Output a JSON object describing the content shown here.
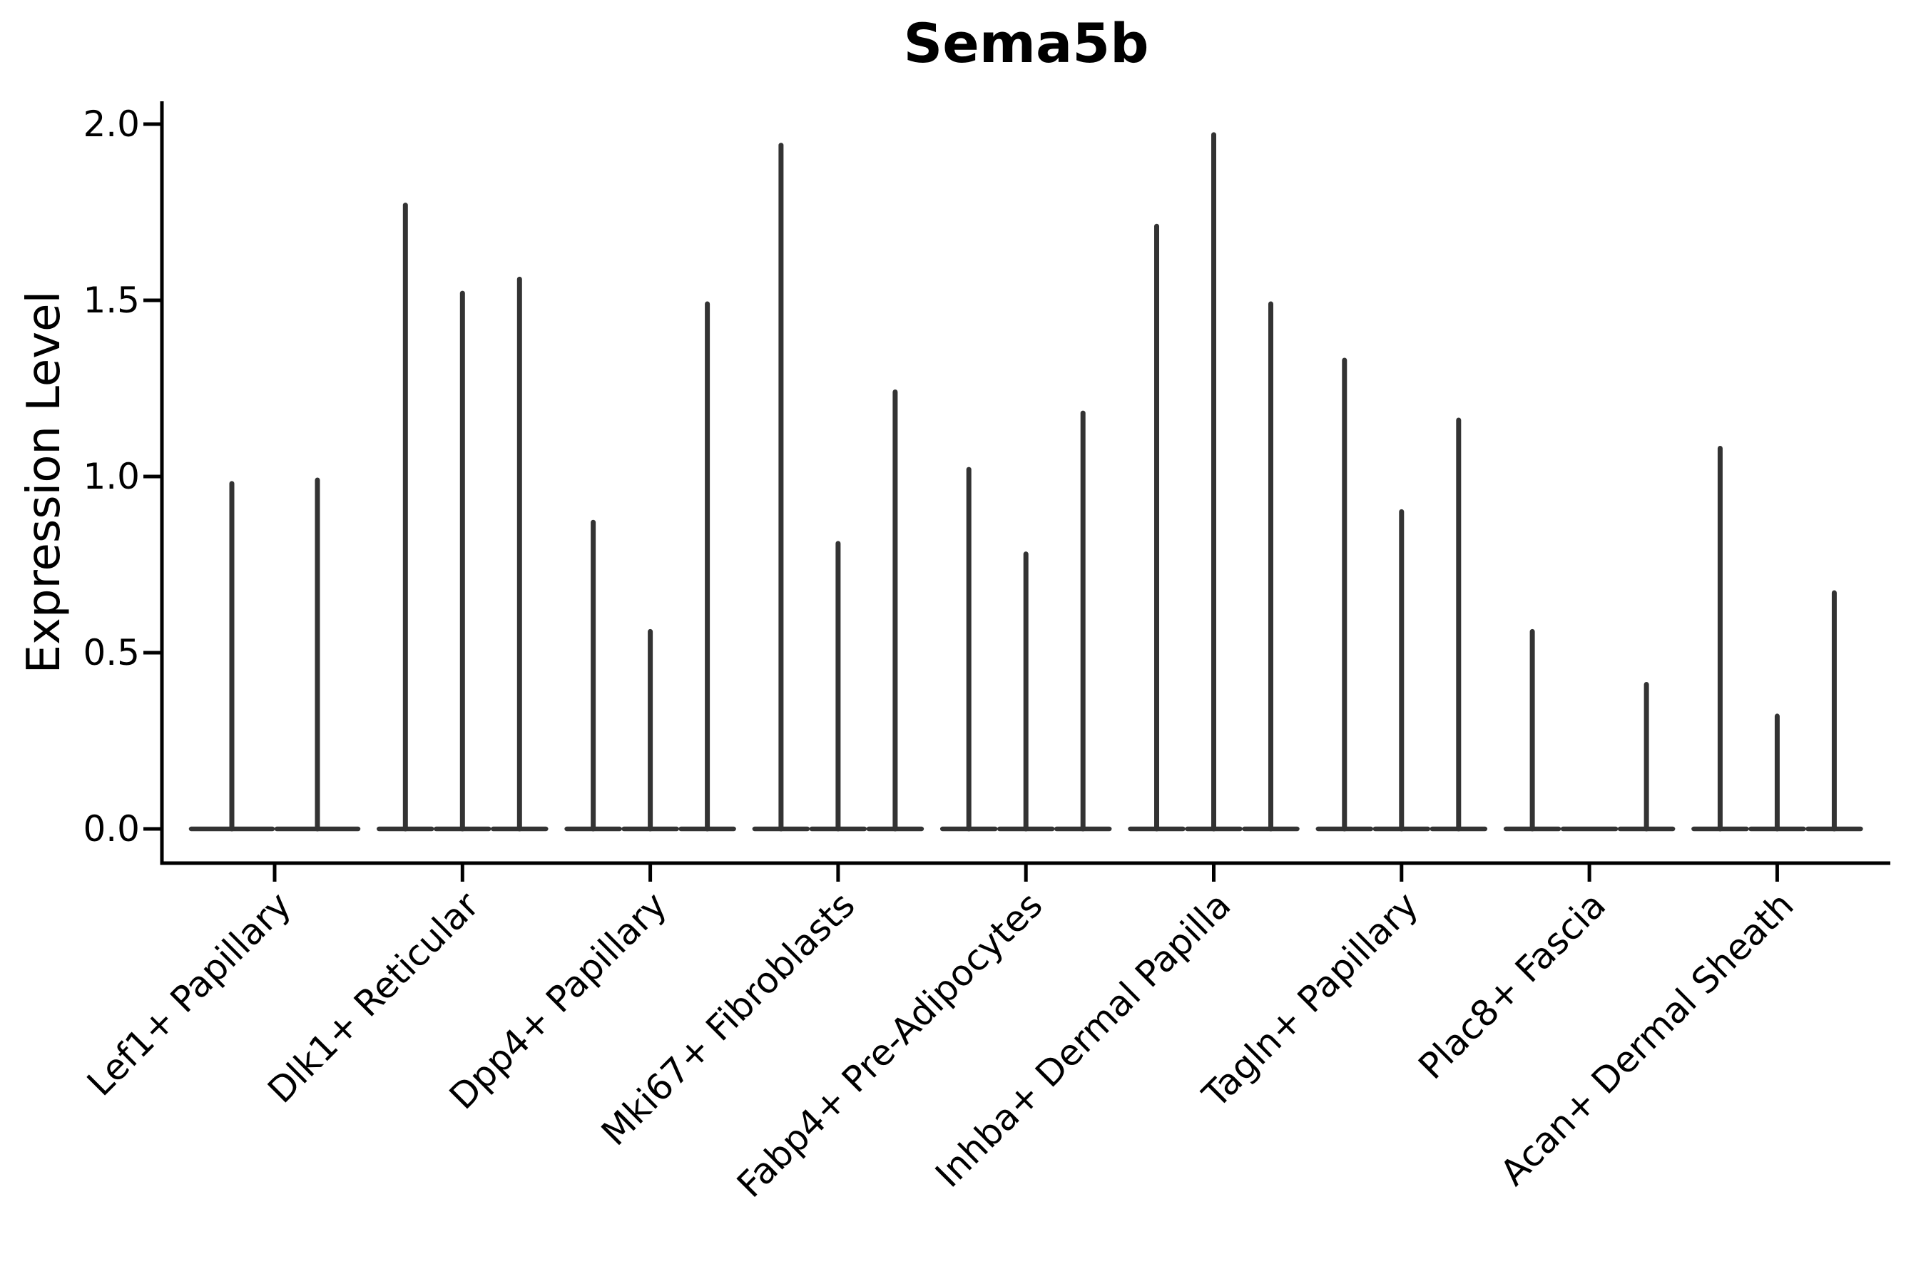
{
  "title": "Sema5b",
  "ylabel": "Expression Level",
  "colors": {
    "violin_stroke": "#333333",
    "axis": "#000000",
    "background": "#ffffff",
    "text": "#000000"
  },
  "chart_data": {
    "type": "violin",
    "title": "Sema5b",
    "xlabel": "",
    "ylabel": "Expression Level",
    "ylim": [
      -0.1,
      2.06
    ],
    "y_ticks": [
      0.0,
      0.5,
      1.0,
      1.5,
      2.0
    ],
    "y_tick_labels": [
      "0.0",
      "0.5",
      "1.0",
      "1.5",
      "2.0"
    ],
    "grid": false,
    "legend": false,
    "x_tick_rotation": 45,
    "categories": [
      "Lef1+ Papillary",
      "Dlk1+ Reticular",
      "Dpp4+ Papillary",
      "Mki67+ Fibroblasts",
      "Fabp4+ Pre-Adipocytes",
      "Inhba+ Dermal Papilla",
      "Tagln+ Papillary",
      "Plac8+ Fascia",
      "Acan+ Dermal Sheath"
    ],
    "series_note": "Each category shows thin violins (flat base at 0 with a needle spike up to the max expression value). Spike maxima listed left-to-right per category; 0 means flat violin with no spike.",
    "violins": [
      {
        "category": "Lef1+ Papillary",
        "maxima": [
          0.98,
          0.99
        ]
      },
      {
        "category": "Dlk1+ Reticular",
        "maxima": [
          1.77,
          1.52,
          1.56
        ]
      },
      {
        "category": "Dpp4+ Papillary",
        "maxima": [
          0.87,
          0.56,
          1.49
        ]
      },
      {
        "category": "Mki67+ Fibroblasts",
        "maxima": [
          1.94,
          0.81,
          1.24
        ]
      },
      {
        "category": "Fabp4+ Pre-Adipocytes",
        "maxima": [
          1.02,
          0.78,
          1.18
        ]
      },
      {
        "category": "Inhba+ Dermal Papilla",
        "maxima": [
          1.71,
          1.97,
          1.49
        ]
      },
      {
        "category": "Tagln+ Papillary",
        "maxima": [
          1.33,
          0.9,
          1.16
        ]
      },
      {
        "category": "Plac8+ Fascia",
        "maxima": [
          0.56,
          0,
          0.41
        ]
      },
      {
        "category": "Acan+ Dermal Sheath",
        "maxima": [
          1.08,
          0.32,
          0.67
        ]
      }
    ]
  }
}
